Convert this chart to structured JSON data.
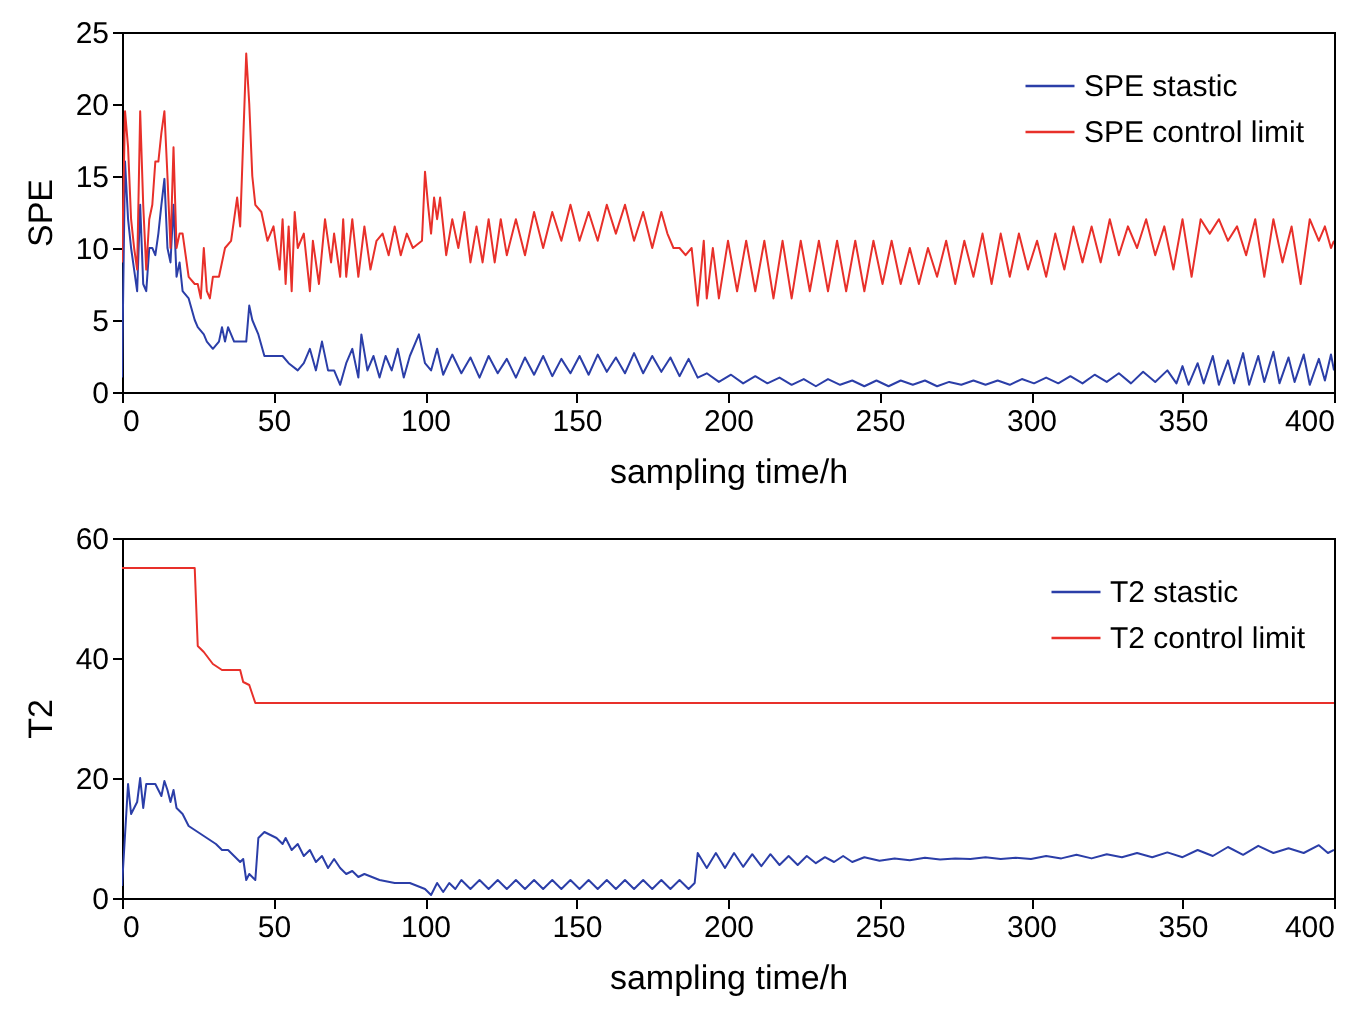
{
  "chart_data": [
    {
      "type": "line",
      "xlabel": "sampling time/h",
      "ylabel": "SPE",
      "xlim": [
        0,
        400
      ],
      "xticks": [
        0,
        50,
        100,
        150,
        200,
        250,
        300,
        350,
        400
      ],
      "ylim": [
        0,
        25
      ],
      "yticks": [
        0,
        5,
        10,
        15,
        20,
        25
      ],
      "legend": "top right",
      "grid": false,
      "series": [
        {
          "name": "SPE stastic",
          "color": "#2b3ea8",
          "x": [
            0,
            1,
            2,
            3,
            4,
            5,
            6,
            7,
            8,
            9,
            10,
            11,
            12,
            13,
            14,
            15,
            16,
            17,
            18,
            19,
            20,
            22,
            24,
            25,
            27,
            28,
            30,
            32,
            33,
            34,
            35,
            37,
            39,
            41,
            42,
            43,
            45,
            47,
            49,
            51,
            53,
            55,
            58,
            60,
            62,
            64,
            66,
            68,
            70,
            72,
            74,
            76,
            78,
            79,
            81,
            83,
            85,
            87,
            89,
            91,
            93,
            95,
            98,
            100,
            102,
            104,
            106,
            109,
            112,
            115,
            118,
            121,
            124,
            127,
            130,
            133,
            136,
            139,
            142,
            145,
            148,
            151,
            154,
            157,
            160,
            163,
            166,
            169,
            172,
            175,
            178,
            181,
            184,
            187,
            190,
            193,
            197,
            201,
            205,
            209,
            213,
            217,
            221,
            225,
            229,
            233,
            237,
            241,
            245,
            249,
            253,
            257,
            261,
            265,
            269,
            273,
            277,
            281,
            285,
            289,
            293,
            297,
            301,
            305,
            309,
            313,
            317,
            321,
            325,
            329,
            333,
            337,
            341,
            345,
            348,
            350,
            352,
            355,
            357,
            360,
            362,
            365,
            367,
            370,
            372,
            375,
            377,
            380,
            382,
            385,
            387,
            390,
            392,
            395,
            397,
            399,
            400
          ],
          "values": [
            1,
            16,
            12,
            10,
            8.5,
            7,
            13,
            7.5,
            7,
            10,
            10,
            9.5,
            11,
            13,
            14.8,
            10,
            9,
            13,
            8,
            9,
            7,
            6.5,
            5,
            4.5,
            4,
            3.5,
            3,
            3.5,
            4.5,
            3.5,
            4.5,
            3.5,
            3.5,
            3.5,
            6,
            5,
            4,
            2.5,
            2.5,
            2.5,
            2.5,
            2,
            1.5,
            2,
            3,
            1.5,
            3.5,
            1.5,
            1.5,
            0.5,
            2,
            3,
            1,
            4,
            1.5,
            2.5,
            1,
            2.5,
            1.5,
            3,
            1,
            2.5,
            4,
            2,
            1.5,
            3,
            1.2,
            2.6,
            1.3,
            2.4,
            1,
            2.5,
            1.3,
            2.3,
            1,
            2.4,
            1.2,
            2.5,
            1.1,
            2.3,
            1.3,
            2.5,
            1.2,
            2.6,
            1.4,
            2.4,
            1.3,
            2.7,
            1.3,
            2.5,
            1.4,
            2.4,
            1.1,
            2.3,
            1,
            1.3,
            0.7,
            1.2,
            0.6,
            1.1,
            0.6,
            1,
            0.5,
            0.9,
            0.4,
            0.9,
            0.5,
            0.8,
            0.4,
            0.8,
            0.4,
            0.8,
            0.5,
            0.8,
            0.4,
            0.7,
            0.5,
            0.8,
            0.5,
            0.8,
            0.5,
            0.9,
            0.6,
            1,
            0.6,
            1.1,
            0.6,
            1.2,
            0.7,
            1.3,
            0.6,
            1.4,
            0.7,
            1.5,
            0.6,
            1.8,
            0.5,
            2,
            0.6,
            2.5,
            0.5,
            2.2,
            0.6,
            2.7,
            0.5,
            2.5,
            0.7,
            2.8,
            0.6,
            2.4,
            0.7,
            2.6,
            0.5,
            2.3,
            0.8,
            2.6,
            1.5
          ]
        },
        {
          "name": "SPE control limit",
          "color": "#e8302a",
          "x": [
            0,
            1,
            2,
            3,
            4,
            5,
            6,
            7,
            8,
            9,
            10,
            11,
            12,
            13,
            14,
            15,
            16,
            17,
            18,
            19,
            20,
            22,
            24,
            25,
            26,
            27,
            28,
            29,
            30,
            32,
            34,
            36,
            38,
            39,
            41,
            42,
            43,
            44,
            46,
            48,
            50,
            52,
            53,
            54,
            55,
            56,
            57,
            58,
            60,
            62,
            63,
            65,
            67,
            69,
            70,
            72,
            73,
            74,
            76,
            78,
            80,
            82,
            84,
            86,
            88,
            90,
            92,
            94,
            96,
            99,
            100,
            101,
            102,
            103,
            104,
            105,
            107,
            109,
            111,
            113,
            115,
            117,
            119,
            121,
            123,
            125,
            127,
            130,
            133,
            136,
            139,
            142,
            145,
            148,
            151,
            154,
            157,
            160,
            163,
            166,
            169,
            172,
            175,
            178,
            180,
            182,
            184,
            186,
            188,
            190,
            192,
            193,
            195,
            197,
            200,
            203,
            206,
            209,
            212,
            215,
            218,
            221,
            224,
            227,
            230,
            233,
            236,
            239,
            242,
            245,
            248,
            251,
            254,
            257,
            260,
            263,
            266,
            269,
            272,
            275,
            278,
            281,
            284,
            287,
            290,
            293,
            296,
            299,
            302,
            305,
            308,
            311,
            314,
            317,
            320,
            323,
            326,
            329,
            332,
            335,
            338,
            341,
            344,
            347,
            350,
            353,
            356,
            359,
            362,
            365,
            368,
            371,
            374,
            377,
            380,
            383,
            386,
            389,
            392,
            395,
            397,
            399,
            400
          ],
          "values": [
            9,
            19.5,
            17,
            12,
            10,
            8.5,
            19.5,
            13,
            8.5,
            12,
            13,
            16,
            16,
            18,
            19.5,
            15,
            10,
            17,
            10,
            11,
            11,
            8,
            7.5,
            7.5,
            6.5,
            10,
            7,
            6.5,
            8,
            8,
            10,
            10.5,
            13.5,
            11.5,
            23.5,
            20,
            15,
            13,
            12.5,
            10.5,
            11.5,
            8.5,
            12,
            7.5,
            11.5,
            7,
            12.5,
            10,
            11,
            7,
            10.5,
            7.5,
            12,
            9,
            11,
            8,
            12,
            8,
            12,
            8,
            11.5,
            8.5,
            10.5,
            11,
            9.5,
            11.5,
            9.5,
            11,
            10,
            10.5,
            15.3,
            13,
            11,
            13.5,
            12,
            13.5,
            9.5,
            12,
            10,
            12.5,
            9,
            11.5,
            9,
            12,
            9,
            12,
            9.5,
            12,
            9.5,
            12.5,
            10,
            12.5,
            10.5,
            13,
            10.5,
            12.5,
            10.5,
            13,
            11,
            13,
            10.5,
            12.5,
            10,
            12.5,
            11,
            10,
            10,
            9.5,
            10,
            6,
            10.5,
            6.5,
            10,
            6.5,
            10.5,
            7,
            10.5,
            7,
            10.5,
            6.5,
            10.5,
            6.5,
            10.5,
            7,
            10.5,
            7,
            10.5,
            7,
            10.5,
            7,
            10.5,
            7.5,
            10.5,
            7.5,
            10,
            7.5,
            10,
            8,
            10.5,
            7.5,
            10.5,
            8,
            11,
            7.5,
            11,
            8,
            11,
            8.5,
            10.5,
            8,
            11,
            8.5,
            11.5,
            9,
            11.5,
            9,
            12,
            9.5,
            11.5,
            10,
            12,
            9.5,
            11.5,
            8.5,
            12,
            8,
            12,
            11,
            12,
            10.5,
            11.5,
            9.5,
            12,
            8,
            12,
            9,
            11.5,
            7.5,
            12,
            10.5,
            11.5,
            10,
            10.5
          ]
        }
      ]
    },
    {
      "type": "line",
      "xlabel": "sampling time/h",
      "ylabel": "T2",
      "xlim": [
        0,
        400
      ],
      "xticks": [
        0,
        50,
        100,
        150,
        200,
        250,
        300,
        350,
        400
      ],
      "ylim": [
        0,
        60
      ],
      "yticks": [
        0,
        20,
        40,
        60
      ],
      "legend": "top right",
      "grid": false,
      "series": [
        {
          "name": "T2 stastic",
          "color": "#2b3ea8",
          "x": [
            0,
            2,
            3,
            5,
            6,
            7,
            8,
            9,
            11,
            13,
            14,
            15,
            16,
            17,
            18,
            20,
            22,
            25,
            28,
            31,
            33,
            35,
            37,
            39,
            40,
            41,
            42,
            43,
            44,
            45,
            47,
            49,
            51,
            53,
            54,
            56,
            58,
            60,
            62,
            64,
            66,
            68,
            70,
            72,
            74,
            76,
            78,
            80,
            85,
            90,
            95,
            100,
            102,
            104,
            106,
            108,
            110,
            112,
            115,
            118,
            121,
            124,
            127,
            130,
            133,
            136,
            139,
            142,
            145,
            148,
            151,
            154,
            157,
            160,
            163,
            166,
            169,
            172,
            175,
            178,
            181,
            184,
            187,
            189,
            190,
            193,
            196,
            199,
            202,
            205,
            208,
            211,
            214,
            217,
            220,
            223,
            226,
            229,
            232,
            235,
            238,
            241,
            245,
            250,
            255,
            260,
            265,
            270,
            275,
            280,
            285,
            290,
            295,
            300,
            305,
            310,
            315,
            320,
            325,
            330,
            335,
            340,
            345,
            350,
            355,
            360,
            365,
            370,
            375,
            380,
            385,
            390,
            395,
            398,
            400
          ],
          "values": [
            2,
            19,
            14,
            16,
            20,
            15,
            19,
            19,
            19,
            17,
            19.5,
            18,
            16,
            18,
            15,
            14,
            12,
            11,
            10,
            9,
            8,
            8,
            7,
            6,
            6.5,
            3,
            4,
            3.5,
            3,
            10,
            11,
            10.5,
            10,
            9,
            10,
            8,
            9,
            7,
            8,
            6,
            7,
            5,
            6.5,
            5,
            4,
            4.5,
            3.5,
            4,
            3,
            2.5,
            2.5,
            1.5,
            0.5,
            2.5,
            1,
            2.5,
            1.5,
            3,
            1.5,
            3,
            1.5,
            3,
            1.5,
            3,
            1.5,
            3,
            1.5,
            3,
            1.5,
            3,
            1.5,
            3,
            1.5,
            3,
            1.5,
            3,
            1.5,
            3,
            1.5,
            3,
            1.5,
            3,
            1.5,
            2.5,
            7.5,
            5,
            7.5,
            5,
            7.5,
            5.2,
            7.3,
            5.3,
            7.3,
            5.5,
            7,
            5.5,
            7,
            5.8,
            6.8,
            6,
            7,
            6,
            6.8,
            6.2,
            6.6,
            6.3,
            6.7,
            6.4,
            6.6,
            6.5,
            6.8,
            6.5,
            6.7,
            6.5,
            7,
            6.6,
            7.2,
            6.6,
            7.3,
            6.8,
            7.5,
            6.8,
            7.6,
            6.8,
            8,
            7,
            8.5,
            7.2,
            8.7,
            7.5,
            8.3,
            7.5,
            8.8,
            7.5,
            8
          ]
        },
        {
          "name": "T2 control limit",
          "color": "#e8302a",
          "x": [
            0,
            24,
            25,
            27,
            30,
            33,
            39,
            40,
            42,
            43,
            44,
            400
          ],
          "values": [
            55,
            55,
            42,
            41,
            39,
            38,
            38,
            36,
            35.5,
            34,
            32.5,
            32.5
          ]
        }
      ]
    }
  ]
}
